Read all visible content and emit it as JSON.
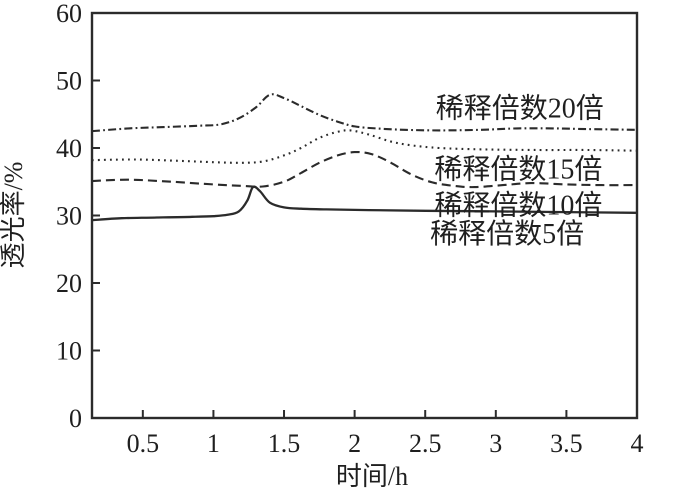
{
  "figure": {
    "background_color": "#ffffff",
    "axis_color": "#2b2b2b",
    "text_color": "#1f1f1f"
  },
  "chart_data": {
    "type": "line",
    "title": "",
    "xlabel": "时间/h",
    "ylabel": "透光率/%",
    "xlim": [
      0.14,
      4
    ],
    "ylim": [
      0,
      60
    ],
    "x_ticks": [
      0.5,
      1,
      1.5,
      2,
      2.5,
      3,
      3.5,
      4
    ],
    "x_tick_labels": [
      "0.5",
      "1",
      "1.5",
      "2",
      "2.5",
      "3",
      "3.5",
      "4"
    ],
    "y_ticks": [
      0,
      10,
      20,
      30,
      40,
      50,
      60
    ],
    "y_tick_labels": [
      "0",
      "10",
      "20",
      "30",
      "40",
      "50",
      "60"
    ],
    "grid": false,
    "legend_position": "inline-annotations",
    "series": [
      {
        "name": "稀释倍数20倍",
        "line_style": "dash-dot",
        "color": "#2b2b2b",
        "points": [
          [
            0.14,
            42.5
          ],
          [
            0.4,
            42.9
          ],
          [
            0.65,
            43.1
          ],
          [
            0.9,
            43.3
          ],
          [
            1.05,
            43.5
          ],
          [
            1.18,
            44.4
          ],
          [
            1.3,
            46.0
          ],
          [
            1.4,
            47.9
          ],
          [
            1.5,
            47.4
          ],
          [
            1.62,
            46.2
          ],
          [
            1.75,
            44.9
          ],
          [
            1.88,
            43.9
          ],
          [
            2.0,
            43.2
          ],
          [
            2.15,
            42.9
          ],
          [
            2.35,
            42.7
          ],
          [
            2.6,
            42.6
          ],
          [
            2.9,
            42.7
          ],
          [
            3.15,
            42.9
          ],
          [
            3.4,
            42.9
          ],
          [
            3.65,
            42.8
          ],
          [
            4.0,
            42.7
          ]
        ]
      },
      {
        "name": "稀释倍数15倍",
        "line_style": "dotted",
        "color": "#2b2b2b",
        "points": [
          [
            0.14,
            38.2
          ],
          [
            0.45,
            38.3
          ],
          [
            0.75,
            38.1
          ],
          [
            1.0,
            37.9
          ],
          [
            1.2,
            37.8
          ],
          [
            1.35,
            38.0
          ],
          [
            1.5,
            38.9
          ],
          [
            1.62,
            40.0
          ],
          [
            1.75,
            41.5
          ],
          [
            1.88,
            42.4
          ],
          [
            1.97,
            42.6
          ],
          [
            2.1,
            42.0
          ],
          [
            2.25,
            41.0
          ],
          [
            2.4,
            40.4
          ],
          [
            2.6,
            40.0
          ],
          [
            2.9,
            39.8
          ],
          [
            3.3,
            39.7
          ],
          [
            3.65,
            39.7
          ],
          [
            4.0,
            39.6
          ]
        ]
      },
      {
        "name": "稀释倍数10倍",
        "line_style": "dashed",
        "color": "#2b2b2b",
        "points": [
          [
            0.14,
            35.1
          ],
          [
            0.4,
            35.3
          ],
          [
            0.7,
            35.0
          ],
          [
            1.0,
            34.6
          ],
          [
            1.2,
            34.4
          ],
          [
            1.35,
            34.3
          ],
          [
            1.5,
            35.0
          ],
          [
            1.62,
            36.3
          ],
          [
            1.75,
            37.8
          ],
          [
            1.88,
            38.9
          ],
          [
            2.0,
            39.4
          ],
          [
            2.12,
            39.1
          ],
          [
            2.25,
            37.9
          ],
          [
            2.4,
            36.1
          ],
          [
            2.55,
            34.9
          ],
          [
            2.7,
            34.4
          ],
          [
            2.85,
            34.2
          ],
          [
            3.05,
            34.5
          ],
          [
            3.25,
            34.8
          ],
          [
            3.5,
            34.6
          ],
          [
            3.75,
            34.5
          ],
          [
            4.0,
            34.5
          ]
        ]
      },
      {
        "name": "稀释倍数5倍",
        "line_style": "solid",
        "color": "#2b2b2b",
        "points": [
          [
            0.14,
            29.3
          ],
          [
            0.35,
            29.6
          ],
          [
            0.6,
            29.7
          ],
          [
            0.85,
            29.8
          ],
          [
            1.0,
            29.9
          ],
          [
            1.1,
            30.1
          ],
          [
            1.18,
            30.6
          ],
          [
            1.24,
            32.2
          ],
          [
            1.28,
            34.2
          ],
          [
            1.33,
            33.6
          ],
          [
            1.4,
            31.9
          ],
          [
            1.5,
            31.2
          ],
          [
            1.62,
            31.0
          ],
          [
            1.8,
            30.9
          ],
          [
            2.1,
            30.8
          ],
          [
            2.5,
            30.7
          ],
          [
            3.0,
            30.6
          ],
          [
            3.5,
            30.5
          ],
          [
            4.0,
            30.4
          ]
        ]
      }
    ],
    "annotations": [
      {
        "text": "稀释倍数20倍",
        "x": 3.17,
        "y": 46.0
      },
      {
        "text": "稀释倍数15倍",
        "x": 3.16,
        "y": 37.0
      },
      {
        "text": "稀释倍数10倍",
        "x": 3.16,
        "y": 31.6
      },
      {
        "text": "稀释倍数5倍",
        "x": 3.08,
        "y": 27.4
      }
    ]
  }
}
